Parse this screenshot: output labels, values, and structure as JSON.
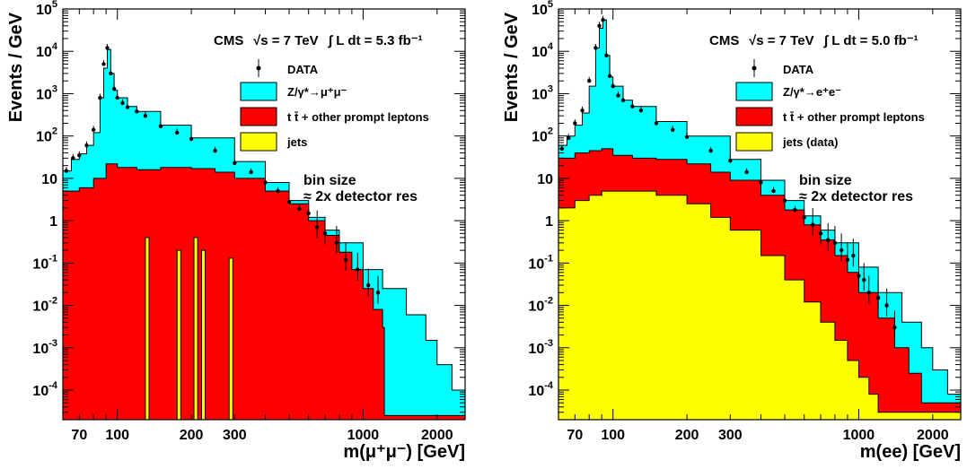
{
  "chart_data": [
    {
      "type": "area",
      "stacked": true,
      "log_x": true,
      "log_y": true,
      "xlim": [
        60,
        2600
      ],
      "ylim": [
        2e-05,
        100000
      ],
      "ylabel": "Events / GeV",
      "xlabel": "m(μ⁺μ⁻) [GeV]",
      "x_ticks": [
        70,
        100,
        200,
        300,
        1000,
        2000
      ],
      "x_tick_labels": [
        "70",
        "100",
        "200",
        "300",
        "1000",
        "2000"
      ],
      "y_tick_labels": [
        {
          "v": 0.0001,
          "m": "10",
          "e": "-4"
        },
        {
          "v": 0.001,
          "m": "10",
          "e": "-3"
        },
        {
          "v": 0.01,
          "m": "10",
          "e": "-2"
        },
        {
          "v": 0.1,
          "m": "10",
          "e": "-1"
        },
        {
          "v": 1,
          "m": "1",
          "e": ""
        },
        {
          "v": 10,
          "m": "10",
          "e": ""
        },
        {
          "v": 100,
          "m": "10",
          "e": "2"
        },
        {
          "v": 1000,
          "m": "10",
          "e": "3"
        },
        {
          "v": 10000,
          "m": "10",
          "e": "4"
        },
        {
          "v": 100000,
          "m": "10",
          "e": "5"
        }
      ],
      "header": {
        "experiment": "CMS",
        "energy": "√s = 7 TeV",
        "lumi": "∫ L dt = 5.3 fb⁻¹"
      },
      "legend": {
        "data": "DATA",
        "signal": "Z/γ*→μ⁺μ⁻",
        "ttbar": "t t̄ + other prompt leptons",
        "jets": "jets"
      },
      "annotation": [
        "bin size",
        "≈ 2x detector res"
      ],
      "colors": {
        "signal": "#00ffff",
        "ttbar": "#ff0000",
        "jets": "#ffff00",
        "data": "#000000"
      },
      "series": [
        {
          "name": "Z/γ*→μ⁺μ⁻",
          "points": [
            [
              60,
              15
            ],
            [
              65,
              28
            ],
            [
              70,
              38
            ],
            [
              75,
              60
            ],
            [
              80,
              120
            ],
            [
              85,
              800
            ],
            [
              88,
              4000
            ],
            [
              91,
              11000
            ],
            [
              94,
              3000
            ],
            [
              97,
              1200
            ],
            [
              100,
              800
            ],
            [
              110,
              500
            ],
            [
              120,
              380
            ],
            [
              150,
              180
            ],
            [
              200,
              90
            ],
            [
              300,
              25
            ],
            [
              400,
              8
            ],
            [
              500,
              3
            ],
            [
              600,
              1.2
            ],
            [
              700,
              0.6
            ],
            [
              800,
              0.3
            ],
            [
              1000,
              0.07
            ],
            [
              1200,
              0.025
            ],
            [
              1500,
              0.006
            ],
            [
              1800,
              0.0015
            ],
            [
              2000,
              0.0004
            ],
            [
              2300,
              0.0001
            ],
            [
              2600,
              3e-05
            ]
          ]
        },
        {
          "name": "t t̄ + other prompt leptons",
          "points": [
            [
              60,
              5
            ],
            [
              70,
              6
            ],
            [
              80,
              10
            ],
            [
              90,
              22
            ],
            [
              100,
              18
            ],
            [
              120,
              16
            ],
            [
              150,
              18
            ],
            [
              200,
              17
            ],
            [
              250,
              14
            ],
            [
              300,
              10
            ],
            [
              400,
              5
            ],
            [
              500,
              2.5
            ],
            [
              600,
              1
            ],
            [
              700,
              0.45
            ],
            [
              800,
              0.18
            ],
            [
              900,
              0.07
            ],
            [
              1000,
              0.025
            ],
            [
              1100,
              0.008
            ],
            [
              1200,
              0.003
            ],
            [
              1220,
              2.5e-05
            ]
          ]
        },
        {
          "name": "jets",
          "bars": [
            [
              130,
              0.4
            ],
            [
              175,
              0.2
            ],
            [
              205,
              0.4
            ],
            [
              220,
              0.2
            ],
            [
              285,
              0.13
            ]
          ]
        }
      ],
      "data_points": [
        [
          62,
          15
        ],
        [
          66,
          30
        ],
        [
          70,
          35
        ],
        [
          75,
          60
        ],
        [
          80,
          140
        ],
        [
          85,
          800
        ],
        [
          88,
          5000
        ],
        [
          91,
          12000
        ],
        [
          94,
          3000
        ],
        [
          97,
          1300
        ],
        [
          100,
          800
        ],
        [
          105,
          600
        ],
        [
          110,
          480
        ],
        [
          120,
          380
        ],
        [
          130,
          300
        ],
        [
          150,
          170
        ],
        [
          175,
          120
        ],
        [
          200,
          85
        ],
        [
          250,
          45
        ],
        [
          300,
          23
        ],
        [
          350,
          14
        ],
        [
          400,
          8
        ],
        [
          450,
          5
        ],
        [
          500,
          2.8
        ],
        [
          550,
          1.9
        ],
        [
          600,
          1.5
        ],
        [
          650,
          0.7
        ],
        [
          700,
          0.5
        ],
        [
          780,
          0.3
        ],
        [
          850,
          0.12
        ],
        [
          950,
          0.07
        ],
        [
          1050,
          0.03
        ],
        [
          1150,
          0.02
        ]
      ]
    },
    {
      "type": "area",
      "stacked": true,
      "log_x": true,
      "log_y": true,
      "xlim": [
        60,
        2600
      ],
      "ylim": [
        2e-05,
        100000
      ],
      "ylabel": "Events / GeV",
      "xlabel": "m(ee) [GeV]",
      "x_ticks": [
        70,
        100,
        200,
        300,
        1000,
        2000
      ],
      "x_tick_labels": [
        "70",
        "100",
        "200",
        "300",
        "1000",
        "2000"
      ],
      "y_tick_labels": [
        {
          "v": 0.0001,
          "m": "10",
          "e": "-4"
        },
        {
          "v": 0.001,
          "m": "10",
          "e": "-3"
        },
        {
          "v": 0.01,
          "m": "10",
          "e": "-2"
        },
        {
          "v": 0.1,
          "m": "10",
          "e": "-1"
        },
        {
          "v": 1,
          "m": "1",
          "e": ""
        },
        {
          "v": 10,
          "m": "10",
          "e": ""
        },
        {
          "v": 100,
          "m": "10",
          "e": "2"
        },
        {
          "v": 1000,
          "m": "10",
          "e": "3"
        },
        {
          "v": 10000,
          "m": "10",
          "e": "4"
        },
        {
          "v": 100000,
          "m": "10",
          "e": "5"
        }
      ],
      "header": {
        "experiment": "CMS",
        "energy": "√s = 7 TeV",
        "lumi": "∫ L dt = 5.0 fb⁻¹"
      },
      "legend": {
        "data": "DATA",
        "signal": "Z/γ*→e⁺e⁻",
        "ttbar": "t t̄ + other prompt leptons",
        "jets": "jets (data)"
      },
      "annotation": [
        "bin size",
        "≈ 2x detector res"
      ],
      "colors": {
        "signal": "#00ffff",
        "ttbar": "#ff0000",
        "jets": "#ffff00",
        "data": "#000000"
      },
      "series": [
        {
          "name": "Z/γ*→e⁺e⁻",
          "points": [
            [
              60,
              60
            ],
            [
              65,
              100
            ],
            [
              70,
              180
            ],
            [
              75,
              350
            ],
            [
              80,
              1500
            ],
            [
              85,
              12000
            ],
            [
              88,
              35000
            ],
            [
              91,
              55000
            ],
            [
              94,
              8000
            ],
            [
              97,
              2500
            ],
            [
              100,
              1500
            ],
            [
              110,
              700
            ],
            [
              120,
              500
            ],
            [
              150,
              220
            ],
            [
              200,
              100
            ],
            [
              300,
              28
            ],
            [
              400,
              9
            ],
            [
              500,
              3
            ],
            [
              600,
              1.3
            ],
            [
              700,
              0.6
            ],
            [
              800,
              0.3
            ],
            [
              1000,
              0.08
            ],
            [
              1200,
              0.02
            ],
            [
              1500,
              0.004
            ],
            [
              1800,
              0.001
            ],
            [
              2000,
              0.0003
            ],
            [
              2300,
              8e-05
            ],
            [
              2600,
              2e-05
            ]
          ]
        },
        {
          "name": "t t̄ + other prompt leptons",
          "points": [
            [
              60,
              30
            ],
            [
              70,
              40
            ],
            [
              80,
              45
            ],
            [
              90,
              50
            ],
            [
              100,
              35
            ],
            [
              120,
              30
            ],
            [
              150,
              28
            ],
            [
              200,
              22
            ],
            [
              250,
              14
            ],
            [
              300,
              9
            ],
            [
              400,
              4
            ],
            [
              500,
              1.8
            ],
            [
              600,
              0.8
            ],
            [
              700,
              0.35
            ],
            [
              800,
              0.15
            ],
            [
              900,
              0.06
            ],
            [
              1000,
              0.02
            ],
            [
              1200,
              0.005
            ],
            [
              1400,
              0.001
            ],
            [
              1600,
              0.00025
            ],
            [
              1800,
              5e-05
            ]
          ]
        },
        {
          "name": "jets (data)",
          "points": [
            [
              60,
              2
            ],
            [
              70,
              3
            ],
            [
              80,
              4
            ],
            [
              90,
              5
            ],
            [
              100,
              5
            ],
            [
              120,
              5
            ],
            [
              150,
              4
            ],
            [
              200,
              2.5
            ],
            [
              250,
              1.2
            ],
            [
              300,
              0.6
            ],
            [
              400,
              0.15
            ],
            [
              500,
              0.04
            ],
            [
              600,
              0.012
            ],
            [
              700,
              0.004
            ],
            [
              800,
              0.0015
            ],
            [
              900,
              0.0005
            ],
            [
              1000,
              0.0002
            ],
            [
              1100,
              8e-05
            ],
            [
              1200,
              3e-05
            ]
          ]
        }
      ],
      "data_points": [
        [
          62,
          50
        ],
        [
          66,
          90
        ],
        [
          70,
          200
        ],
        [
          75,
          400
        ],
        [
          80,
          2000
        ],
        [
          85,
          12000
        ],
        [
          88,
          40000
        ],
        [
          91,
          55000
        ],
        [
          94,
          8000
        ],
        [
          97,
          2600
        ],
        [
          100,
          1500
        ],
        [
          105,
          900
        ],
        [
          110,
          700
        ],
        [
          120,
          500
        ],
        [
          130,
          400
        ],
        [
          150,
          200
        ],
        [
          175,
          140
        ],
        [
          200,
          95
        ],
        [
          250,
          45
        ],
        [
          300,
          26
        ],
        [
          350,
          14
        ],
        [
          400,
          8
        ],
        [
          450,
          5
        ],
        [
          500,
          3
        ],
        [
          550,
          1.8
        ],
        [
          600,
          1.2
        ],
        [
          650,
          0.8
        ],
        [
          700,
          0.5
        ],
        [
          750,
          0.35
        ],
        [
          800,
          0.3
        ],
        [
          850,
          0.2
        ],
        [
          900,
          0.12
        ],
        [
          950,
          0.15
        ],
        [
          1000,
          0.05
        ],
        [
          1050,
          0.04
        ],
        [
          1100,
          0.02
        ],
        [
          1200,
          0.015
        ],
        [
          1300,
          0.01
        ],
        [
          1400,
          0.003
        ]
      ]
    }
  ]
}
